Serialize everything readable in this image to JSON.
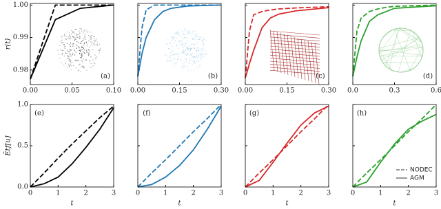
{
  "chart_data": [
    {
      "type": "line",
      "panel_label": "(a)",
      "ylabel": "r(t)",
      "x": [
        0,
        0.03,
        0.06,
        0.1
      ],
      "series": [
        {
          "color": "#000000",
          "dashed": true,
          "values": [
            0.9772,
            1.0,
            1.0,
            1.0
          ]
        },
        {
          "color": "#000000",
          "dashed": false,
          "values": [
            0.9772,
            0.9955,
            0.999,
            1.0
          ]
        }
      ],
      "inset_color": "#555555",
      "xlim": [
        0,
        0.1
      ],
      "xticks": [
        {
          "value": 0,
          "label": "0.00"
        },
        0.05,
        {
          "value": 0.1,
          "label": "0.10"
        }
      ],
      "ylim": [
        0.9755,
        1.0005
      ],
      "yticks": [
        0.98,
        0.99,
        {
          "value": 1,
          "label": "1.00"
        }
      ],
      "show_ytick_labels": true
    },
    {
      "type": "line",
      "panel_label": "(b)",
      "x": [
        0,
        0.015,
        0.03,
        0.06,
        0.09,
        0.12,
        0.18,
        0.3
      ],
      "series": [
        {
          "color": "#1f77b4",
          "dashed": true,
          "values": [
            0.978,
            0.993,
            0.9985,
            1.0,
            1.0,
            1.0,
            1.0,
            1.0
          ]
        },
        {
          "color": "#1f77b4",
          "dashed": false,
          "values": [
            0.978,
            0.985,
            0.99,
            0.9955,
            0.998,
            0.999,
            0.9997,
            1.0
          ]
        }
      ],
      "inset_color": "#9ecae1",
      "xlim": [
        0,
        0.3
      ],
      "xticks": [
        {
          "value": 0,
          "label": "0.00"
        },
        0.15,
        {
          "value": 0.3,
          "label": "0.30"
        }
      ],
      "ylim": [
        0.9755,
        1.0005
      ],
      "yticks": [
        0.98,
        0.99,
        1
      ],
      "show_ytick_labels": false
    },
    {
      "type": "line",
      "panel_label": "(c)",
      "x": [
        0,
        0.015,
        0.03,
        0.06,
        0.09,
        0.12,
        0.18,
        0.3
      ],
      "series": [
        {
          "color": "#d62728",
          "dashed": true,
          "values": [
            0.9775,
            0.992,
            0.997,
            0.998,
            0.9985,
            0.9988,
            0.9991,
            0.9995
          ]
        },
        {
          "color": "#d62728",
          "dashed": false,
          "values": [
            0.9775,
            0.982,
            0.986,
            0.993,
            0.996,
            0.9972,
            0.9982,
            0.9992
          ]
        }
      ],
      "inset_color": "#a83232",
      "xlim": [
        0,
        0.3
      ],
      "xticks": [
        {
          "value": 0,
          "label": "0.00"
        },
        0.15,
        {
          "value": 0.3,
          "label": "0.30"
        }
      ],
      "ylim": [
        0.9755,
        1.0005
      ],
      "yticks": [
        0.98,
        0.99,
        1
      ],
      "show_ytick_labels": false
    },
    {
      "type": "line",
      "panel_label": "(d)",
      "x": [
        0,
        0.03,
        0.06,
        0.12,
        0.18,
        0.24,
        0.3,
        0.6
      ],
      "series": [
        {
          "color": "#2ca02c",
          "dashed": true,
          "values": [
            0.978,
            0.992,
            0.996,
            0.998,
            0.9988,
            0.9993,
            0.9996,
            1.0
          ]
        },
        {
          "color": "#2ca02c",
          "dashed": false,
          "values": [
            0.978,
            0.984,
            0.989,
            0.995,
            0.997,
            0.998,
            0.999,
            0.9998
          ]
        }
      ],
      "inset_color": "#98d098",
      "xlim": [
        0,
        0.6
      ],
      "xticks": [
        {
          "value": 0,
          "label": "0.0"
        },
        0.3,
        0.6
      ],
      "ylim": [
        0.9755,
        1.0005
      ],
      "yticks": [
        0.98,
        0.99,
        1
      ],
      "show_ytick_labels": false
    },
    {
      "type": "line",
      "panel_label": "(e)",
      "ylabel": "Ētf[u]",
      "xlabel": "t",
      "x": [
        0,
        0.5,
        1,
        1.5,
        2,
        2.5,
        3
      ],
      "series": [
        {
          "color": "#000000",
          "dashed": true,
          "values": [
            0,
            0.17,
            0.35,
            0.52,
            0.68,
            0.84,
            0.98
          ]
        },
        {
          "color": "#000000",
          "dashed": false,
          "values": [
            0,
            0.04,
            0.12,
            0.28,
            0.48,
            0.7,
            0.96
          ]
        }
      ],
      "xlim": [
        0,
        3
      ],
      "xticks": [
        0,
        1,
        2,
        3
      ],
      "ylim": [
        0,
        1
      ],
      "yticks": [
        {
          "value": 0,
          "label": "0.0"
        },
        0.5,
        {
          "value": 1,
          "label": "1.0"
        }
      ],
      "show_ytick_labels": true
    },
    {
      "type": "line",
      "panel_label": "(f)",
      "xlabel": "t",
      "x": [
        0,
        0.5,
        1,
        1.5,
        2,
        2.5,
        3
      ],
      "series": [
        {
          "color": "#1f77b4",
          "dashed": true,
          "values": [
            0,
            0.17,
            0.33,
            0.5,
            0.67,
            0.83,
            1.0
          ]
        },
        {
          "color": "#1f77b4",
          "dashed": false,
          "values": [
            0,
            0.03,
            0.12,
            0.26,
            0.45,
            0.7,
            0.98
          ]
        }
      ],
      "xlim": [
        0,
        3
      ],
      "xticks": [
        0,
        1,
        2,
        3
      ],
      "ylim": [
        0,
        1
      ],
      "yticks": [
        0,
        0.5,
        1
      ],
      "show_ytick_labels": false
    },
    {
      "type": "line",
      "panel_label": "(g)",
      "xlabel": "t",
      "x": [
        0,
        0.5,
        1,
        1.5,
        2,
        2.5,
        3
      ],
      "series": [
        {
          "color": "#d62728",
          "dashed": true,
          "values": [
            0,
            0.17,
            0.33,
            0.5,
            0.67,
            0.83,
            1.0
          ]
        },
        {
          "color": "#d62728",
          "dashed": false,
          "values": [
            0,
            0.08,
            0.3,
            0.53,
            0.75,
            0.9,
            0.98
          ]
        }
      ],
      "xlim": [
        0,
        3
      ],
      "xticks": [
        0,
        1,
        2,
        3
      ],
      "ylim": [
        0,
        1
      ],
      "yticks": [
        0,
        0.5,
        1
      ],
      "show_ytick_labels": false
    },
    {
      "type": "line",
      "panel_label": "(h)",
      "xlabel": "t",
      "legend": "lower right",
      "x": [
        0,
        0.5,
        1,
        1.5,
        2,
        2.5,
        3
      ],
      "series": [
        {
          "name": "NODEC",
          "color": "#2ca02c",
          "dashed": true,
          "values": [
            0,
            0.17,
            0.33,
            0.5,
            0.67,
            0.83,
            1.0
          ]
        },
        {
          "name": "AGM",
          "color": "#2ca02c",
          "dashed": false,
          "values": [
            0,
            0.06,
            0.3,
            0.52,
            0.7,
            0.8,
            0.88
          ]
        }
      ],
      "xlim": [
        0,
        3
      ],
      "xticks": [
        0,
        1,
        2,
        3
      ],
      "ylim": [
        0,
        1
      ],
      "yticks": [
        0,
        0.5,
        1
      ],
      "show_ytick_labels": false
    }
  ]
}
